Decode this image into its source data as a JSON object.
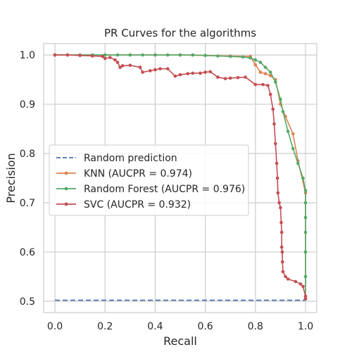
{
  "chart_data": {
    "type": "line",
    "title": "PR Curves for the algorithms",
    "xlabel": "Recall",
    "ylabel": "Precision",
    "xlim": [
      -0.045,
      1.045
    ],
    "ylim": [
      0.477,
      1.023
    ],
    "xticks": [
      0.0,
      0.2,
      0.4,
      0.6,
      0.8,
      1.0
    ],
    "xtick_labels": [
      "0.0",
      "0.2",
      "0.4",
      "0.6",
      "0.8",
      "1.0"
    ],
    "yticks": [
      0.5,
      0.6,
      0.7,
      0.8,
      0.9,
      1.0
    ],
    "ytick_labels": [
      "0.5",
      "0.6",
      "0.7",
      "0.8",
      "0.9",
      "1.0"
    ],
    "grid": true,
    "legend_position": "center-left",
    "series": [
      {
        "name": "Random prediction",
        "color": "#4C72B0",
        "style": "dashed",
        "markers": false,
        "x": [
          0.0,
          1.0
        ],
        "y": [
          0.502,
          0.502
        ]
      },
      {
        "name": "KNN (AUCPR = 0.974)",
        "color": "#DD8452",
        "style": "solid",
        "markers": true,
        "x": [
          0.0,
          0.05,
          0.1,
          0.2,
          0.3,
          0.4,
          0.5,
          0.6,
          0.7,
          0.78,
          0.8,
          0.82,
          0.84,
          0.86,
          0.88,
          0.9,
          0.92,
          0.95,
          0.97,
          1.0,
          1.0
        ],
        "y": [
          1.0,
          1.0,
          1.0,
          1.0,
          1.0,
          1.0,
          1.0,
          0.999,
          0.998,
          0.997,
          0.98,
          0.965,
          0.962,
          0.958,
          0.95,
          0.9,
          0.875,
          0.84,
          0.785,
          0.72,
          0.51
        ]
      },
      {
        "name": "Random Forest (AUCPR = 0.976)",
        "color": "#55A868",
        "style": "solid",
        "markers": true,
        "x": [
          0.0,
          0.05,
          0.1,
          0.15,
          0.2,
          0.25,
          0.3,
          0.35,
          0.4,
          0.45,
          0.5,
          0.55,
          0.6,
          0.65,
          0.7,
          0.75,
          0.78,
          0.8,
          0.82,
          0.84,
          0.86,
          0.88,
          0.9,
          0.91,
          0.93,
          0.95,
          0.97,
          0.99,
          1.0,
          1.0,
          1.0,
          1.0,
          1.0,
          1.0,
          1.0
        ],
        "y": [
          1.0,
          1.0,
          1.0,
          1.0,
          1.0,
          1.0,
          1.0,
          1.0,
          1.0,
          1.0,
          1.0,
          1.0,
          0.999,
          0.998,
          0.997,
          0.996,
          0.994,
          0.99,
          0.985,
          0.975,
          0.965,
          0.945,
          0.91,
          0.885,
          0.845,
          0.81,
          0.78,
          0.75,
          0.725,
          0.7,
          0.67,
          0.64,
          0.6,
          0.55,
          0.505
        ]
      },
      {
        "name": "SVC (AUCPR = 0.932)",
        "color": "#C44E52",
        "style": "solid",
        "markers": true,
        "x": [
          0.0,
          0.05,
          0.1,
          0.15,
          0.19,
          0.2,
          0.22,
          0.24,
          0.25,
          0.26,
          0.27,
          0.3,
          0.34,
          0.35,
          0.38,
          0.4,
          0.42,
          0.45,
          0.48,
          0.5,
          0.53,
          0.55,
          0.58,
          0.6,
          0.62,
          0.65,
          0.68,
          0.7,
          0.73,
          0.76,
          0.8,
          0.83,
          0.85,
          0.86,
          0.87,
          0.875,
          0.88,
          0.885,
          0.888,
          0.89,
          0.895,
          0.9,
          0.903,
          0.905,
          0.905,
          0.907,
          0.908,
          0.91,
          0.92,
          0.93,
          0.96,
          0.98,
          0.99,
          1.0,
          1.0
        ],
        "y": [
          1.0,
          1.0,
          0.999,
          0.998,
          0.997,
          0.993,
          0.995,
          0.99,
          0.985,
          0.975,
          0.978,
          0.979,
          0.975,
          0.965,
          0.968,
          0.97,
          0.972,
          0.972,
          0.957,
          0.96,
          0.962,
          0.963,
          0.963,
          0.965,
          0.966,
          0.955,
          0.952,
          0.953,
          0.954,
          0.955,
          0.94,
          0.94,
          0.938,
          0.92,
          0.89,
          0.86,
          0.82,
          0.78,
          0.75,
          0.72,
          0.7,
          0.69,
          0.66,
          0.64,
          0.61,
          0.6,
          0.58,
          0.56,
          0.55,
          0.545,
          0.54,
          0.535,
          0.53,
          0.51,
          0.505
        ]
      }
    ]
  }
}
